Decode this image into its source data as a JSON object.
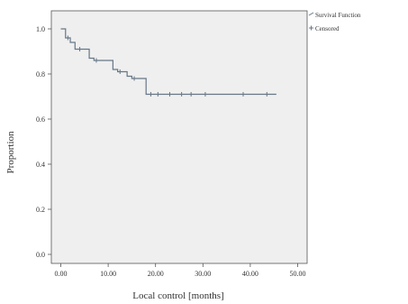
{
  "chart_data": {
    "type": "line",
    "title": "",
    "xlabel": "Local control [months]",
    "ylabel": "Proportion",
    "xlim": [
      -2,
      52
    ],
    "ylim": [
      -0.04,
      1.08
    ],
    "x_ticks": [
      "0.00",
      "10.00",
      "20.00",
      "30.00",
      "40.00",
      "50.00"
    ],
    "x_tick_values": [
      0,
      10,
      20,
      30,
      40,
      50
    ],
    "y_ticks": [
      "0.0",
      "0.2",
      "0.4",
      "0.6",
      "0.8",
      "1.0"
    ],
    "y_tick_values": [
      0,
      0.2,
      0.4,
      0.6,
      0.8,
      1.0
    ],
    "grid": false,
    "legend_position": "top-right",
    "plot_background": "#efefef",
    "line_color": "#667788",
    "series": [
      {
        "name": "Survival Function",
        "step": true,
        "x": [
          0,
          1,
          2,
          3,
          5,
          6,
          7,
          11,
          12,
          14,
          15,
          18,
          30,
          45.5
        ],
        "y": [
          1.0,
          0.96,
          0.94,
          0.91,
          0.91,
          0.87,
          0.86,
          0.82,
          0.81,
          0.79,
          0.78,
          0.71,
          0.71,
          0.71
        ]
      },
      {
        "name": "Censored",
        "marker": "+",
        "x": [
          1.5,
          4,
          7.5,
          12.5,
          15.5,
          19,
          20.5,
          23,
          25.5,
          27.5,
          30.5,
          38.5,
          43.5
        ],
        "y": [
          0.96,
          0.91,
          0.86,
          0.81,
          0.78,
          0.71,
          0.71,
          0.71,
          0.71,
          0.71,
          0.71,
          0.71,
          0.71
        ]
      }
    ]
  }
}
